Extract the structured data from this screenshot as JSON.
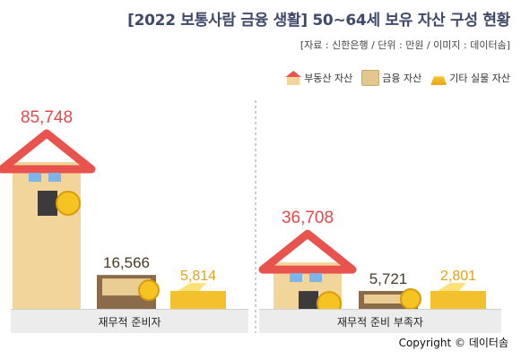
{
  "title": "[2022 보통사람 금융 생활] 50~64세 보유 자산 구성 현황",
  "source": "[자료 : 신한은행 / 단위 : 만원 / 이미지 : 데이터솜]",
  "legend": [
    {
      "label": "부동산 자산",
      "icon": "house-icon"
    },
    {
      "label": "금융 자산",
      "icon": "box-icon"
    },
    {
      "label": "기타 실물 자산",
      "icon": "gold-bars-icon"
    }
  ],
  "copyright": "Copyright © 데이터솜",
  "colors": {
    "value_red": "#e8474a",
    "value_dark": "#4a3a22",
    "value_gold": "#e0a21a",
    "house_wall": "#f2d59a",
    "roof": "#e8534e",
    "box": "#8c6b4a",
    "gold": "#f4c12e",
    "base": "#ececec"
  },
  "chart_data": {
    "type": "bar",
    "unit": "만원",
    "groups": [
      "재무적 준비자",
      "재무적 준비 부족자"
    ],
    "series": [
      {
        "name": "부동산 자산",
        "values": [
          85748,
          36708
        ]
      },
      {
        "name": "금융 자산",
        "values": [
          16566,
          5721
        ]
      },
      {
        "name": "기타 실물 자산",
        "values": [
          5814,
          2801
        ]
      }
    ],
    "value_labels": [
      [
        "85,748",
        "16,566",
        "5,814"
      ],
      [
        "36,708",
        "5,721",
        "2,801"
      ]
    ]
  }
}
